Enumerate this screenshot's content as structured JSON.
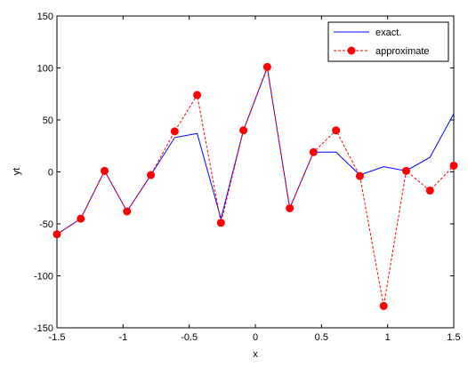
{
  "chart_data": {
    "type": "line",
    "xlabel": "x",
    "ylabel": "yt",
    "xlim": [
      -1.5,
      1.5
    ],
    "ylim": [
      -150,
      150
    ],
    "xticks": [
      -1.5,
      -1,
      -0.5,
      0,
      0.5,
      1,
      1.5
    ],
    "yticks": [
      -150,
      -100,
      -50,
      0,
      50,
      100,
      150
    ],
    "xtick_labels": [
      "-1.5",
      "-1",
      "-0.5",
      "0",
      "0.5",
      "1",
      "1.5"
    ],
    "ytick_labels": [
      "-150",
      "-100",
      "-50",
      "0",
      "50",
      "100",
      "150"
    ],
    "grid": false,
    "legend_position": "top-right",
    "series": [
      {
        "name": "exact.",
        "color": "#0000ff",
        "style": "solid",
        "marker": "none",
        "x": [
          -1.5,
          -1.32,
          -1.14,
          -0.97,
          -0.79,
          -0.61,
          -0.44,
          -0.26,
          -0.09,
          0.09,
          0.26,
          0.44,
          0.61,
          0.79,
          0.97,
          1.14,
          1.32,
          1.5
        ],
        "y": [
          -60,
          -45,
          1,
          -38,
          -3,
          33,
          37,
          -45,
          40,
          100,
          -35,
          19,
          19,
          -3,
          5,
          1,
          14,
          56
        ]
      },
      {
        "name": "approximate",
        "color": "#ff0000",
        "style": "dashed",
        "marker": "circle",
        "x": [
          -1.5,
          -1.32,
          -1.14,
          -0.97,
          -0.79,
          -0.61,
          -0.44,
          -0.26,
          -0.09,
          0.09,
          0.26,
          0.44,
          0.61,
          0.79,
          0.97,
          1.14,
          1.32,
          1.5
        ],
        "y": [
          -60,
          -45,
          1,
          -38,
          -3,
          39,
          74,
          -49,
          40,
          101,
          -35,
          19,
          40,
          -4,
          -129,
          1,
          -18,
          6
        ]
      }
    ]
  }
}
